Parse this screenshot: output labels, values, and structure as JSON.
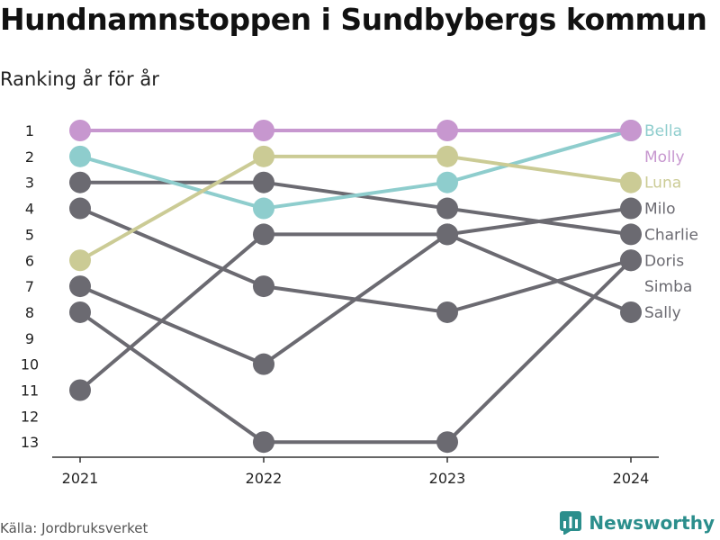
{
  "title": "Hundnamnstoppen i Sundbybergs kommun",
  "subtitle": "Ranking år för år",
  "source": "Källa: Jordbruksverket",
  "brand": {
    "name": "Newsworthy",
    "icon": "chart-logo-icon",
    "color": "#2b8e8c"
  },
  "colors": {
    "default": "#6b6a71",
    "axis": "#333333",
    "text": "#222222"
  },
  "chart_data": {
    "type": "line",
    "x": [
      "2021",
      "2022",
      "2023",
      "2024"
    ],
    "y_ticks": [
      "1",
      "2",
      "3",
      "4",
      "5",
      "6",
      "7",
      "8",
      "9",
      "10",
      "11",
      "12",
      "13"
    ],
    "ylim": [
      1,
      13
    ],
    "y_inverted": true,
    "grid": false,
    "legend": "right-end labels",
    "series": [
      {
        "name": "Bella",
        "values": [
          2,
          4,
          3,
          1
        ],
        "color": "#8ecdcd"
      },
      {
        "name": "Molly",
        "values": [
          1,
          1,
          1,
          1
        ],
        "color": "#c797cf"
      },
      {
        "name": "Luna",
        "values": [
          6,
          2,
          2,
          3
        ],
        "color": "#cbcb95"
      },
      {
        "name": "Milo",
        "values": [
          11,
          5,
          5,
          4
        ],
        "color": "#6b6a71"
      },
      {
        "name": "Charlie",
        "values": [
          3,
          3,
          4,
          5
        ],
        "color": "#6b6a71"
      },
      {
        "name": "Doris",
        "values": [
          4,
          7,
          8,
          6
        ],
        "color": "#6b6a71"
      },
      {
        "name": "Simba",
        "values": [
          8,
          13,
          13,
          6
        ],
        "color": "#6b6a71"
      },
      {
        "name": "Sally",
        "values": [
          7,
          10,
          5,
          8
        ],
        "color": "#6b6a71"
      }
    ]
  }
}
